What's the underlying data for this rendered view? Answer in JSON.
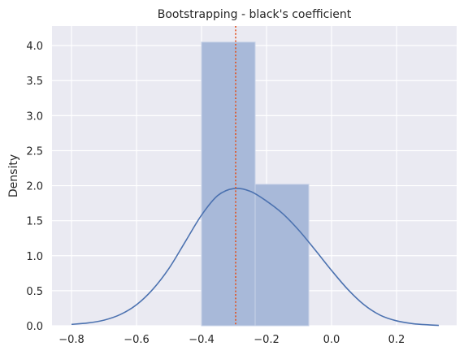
{
  "chart_data": {
    "type": "bar",
    "title": "Bootstrapping - black's coefficient",
    "xlabel": "",
    "ylabel": "Density",
    "xlim": [
      -0.86,
      0.385
    ],
    "ylim": [
      0,
      4.28
    ],
    "grid": true,
    "xticks": [
      -0.8,
      -0.6,
      -0.4,
      -0.2,
      0.0,
      0.2
    ],
    "xtick_labels": [
      "−0.8",
      "−0.6",
      "−0.4",
      "−0.2",
      "0.0",
      "0.2"
    ],
    "yticks": [
      0.0,
      0.5,
      1.0,
      1.5,
      2.0,
      2.5,
      3.0,
      3.5,
      4.0
    ],
    "ytick_labels": [
      "0.0",
      "0.5",
      "1.0",
      "1.5",
      "2.0",
      "2.5",
      "3.0",
      "3.5",
      "4.0"
    ],
    "histogram": {
      "bins": [
        {
          "x0": -0.4,
          "x1": -0.235,
          "density": 4.05
        },
        {
          "x0": -0.235,
          "x1": -0.07,
          "density": 2.02
        }
      ]
    },
    "kde": {
      "x": [
        -0.8,
        -0.75,
        -0.7,
        -0.65,
        -0.6,
        -0.55,
        -0.5,
        -0.45,
        -0.4,
        -0.35,
        -0.3,
        -0.25,
        -0.2,
        -0.15,
        -0.1,
        -0.05,
        0.0,
        0.05,
        0.1,
        0.15,
        0.2,
        0.25,
        0.3,
        0.33
      ],
      "y": [
        0.02,
        0.04,
        0.08,
        0.16,
        0.3,
        0.52,
        0.82,
        1.2,
        1.58,
        1.86,
        1.96,
        1.92,
        1.78,
        1.6,
        1.36,
        1.08,
        0.79,
        0.52,
        0.3,
        0.15,
        0.07,
        0.03,
        0.012,
        0.005
      ]
    },
    "reference_line": {
      "x": -0.295,
      "style": "dotted"
    },
    "colors": {
      "background": "#eaeaf2",
      "grid": "#ffffff",
      "bar_fill": "#a8b9d9",
      "bar_edge": "#c8d3e8",
      "kde_line": "#4c72b0",
      "reference_line": "#e2501d",
      "text": "#262626"
    }
  }
}
